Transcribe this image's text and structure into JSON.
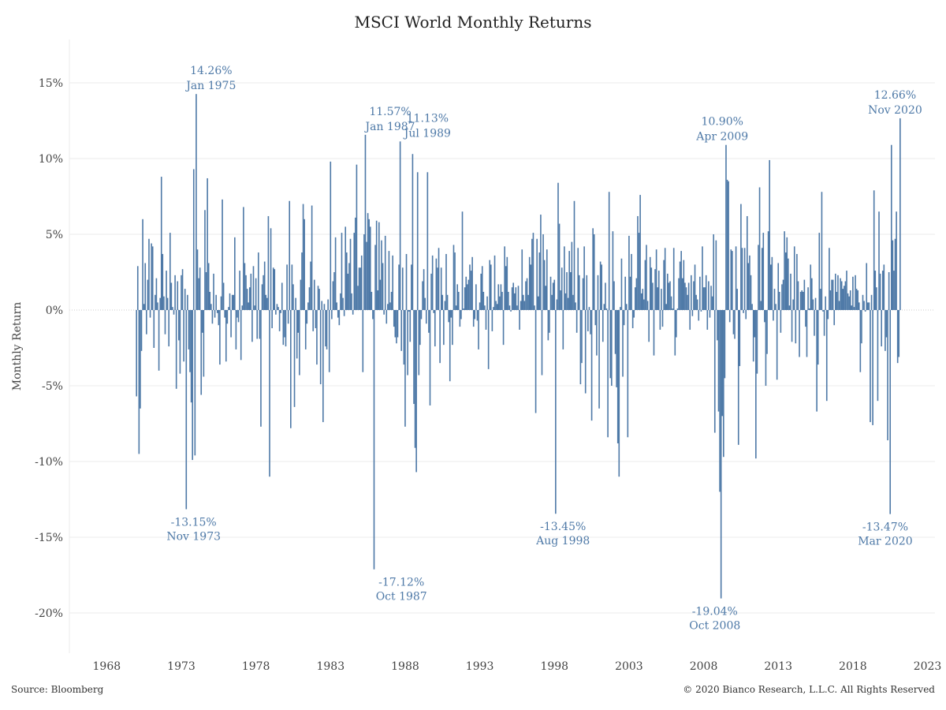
{
  "title": "MSCI World Monthly Returns",
  "source": "Source: Bloomberg",
  "copyright": "© 2020 Bianco Research, L.L.C. All Rights Reserved",
  "colors": {
    "bar": "#4e79a7",
    "annotation": "#4e79a7",
    "grid": "#ebebeb",
    "zero_line": "#cccccc"
  },
  "chart_data": {
    "type": "bar",
    "title": "MSCI World Monthly Returns",
    "xlabel": "",
    "ylabel": "Monthly Return",
    "x_ticks": [
      "1968",
      "1973",
      "1978",
      "1983",
      "1988",
      "1993",
      "1998",
      "2003",
      "2008",
      "2013",
      "2018",
      "2023"
    ],
    "y_ticks": [
      "15%",
      "10%",
      "5%",
      "0%",
      "-5%",
      "-10%",
      "-15%",
      "-20%"
    ],
    "ylim": [
      -22.5,
      17.5
    ],
    "xlim": [
      1965.5,
      2023.5
    ],
    "grid": "horizontal",
    "start": "1970-01",
    "series": [
      {
        "frequency": "monthly",
        "values": [
          -5.7,
          2.9,
          -9.5,
          -6.5,
          -2.7,
          6.0,
          0.4,
          3.1,
          -1.6,
          2.0,
          4.7,
          -0.5,
          4.4,
          4.2,
          -2.5,
          1.0,
          2.1,
          0.5,
          -4.0,
          0.8,
          8.8,
          3.7,
          0.9,
          -1.6,
          2.6,
          0.8,
          -2.4,
          5.1,
          1.8,
          0.2,
          -0.3,
          2.3,
          -5.2,
          1.9,
          -2.0,
          -4.2,
          2.3,
          2.7,
          -3.4,
          1.4,
          -13.15,
          1.0,
          -2.6,
          -4.1,
          -6.1,
          -9.9,
          9.3,
          -9.6,
          14.26,
          4.0,
          2.1,
          2.8,
          -5.6,
          -1.5,
          -4.4,
          6.6,
          2.5,
          8.7,
          3.1,
          1.2,
          0.4,
          -0.9,
          2.4,
          -0.5,
          1.0,
          -0.2,
          -1.0,
          -3.6,
          0.9,
          7.3,
          1.8,
          -0.5,
          -3.4,
          -0.9,
          0.2,
          1.1,
          -1.8,
          1.0,
          1.0,
          4.8,
          -2.6,
          -0.5,
          -0.8,
          2.6,
          -3.3,
          0.3,
          6.8,
          3.1,
          2.3,
          1.4,
          0.5,
          1.5,
          2.4,
          -2.1,
          2.9,
          0.3,
          2.1,
          -1.9,
          3.8,
          -1.9,
          -7.7,
          1.7,
          2.3,
          3.2,
          1.0,
          0.8,
          6.2,
          -11.0,
          5.4,
          -1.2,
          2.8,
          2.7,
          -0.3,
          0.4,
          0.2,
          -1.4,
          -0.2,
          1.8,
          -2.3,
          -1.8,
          -2.4,
          3.0,
          -0.9,
          7.2,
          -7.8,
          3.0,
          1.7,
          -6.4,
          0.8,
          -3.2,
          -1.5,
          -4.3,
          2.0,
          3.8,
          7.0,
          6.0,
          -2.6,
          -0.9,
          0.5,
          1.5,
          3.2,
          6.9,
          -1.4,
          2.0,
          -1.2,
          -3.6,
          1.6,
          1.4,
          -4.9,
          0.6,
          -7.4,
          0.4,
          -2.4,
          -2.6,
          0.7,
          -4.1,
          9.8,
          -0.6,
          1.9,
          2.5,
          4.8,
          0.5,
          -0.5,
          -1.0,
          1.1,
          5.1,
          0.8,
          -0.4,
          5.5,
          3.8,
          2.4,
          3.1,
          4.7,
          1.1,
          -0.3,
          5.1,
          6.1,
          9.6,
          1.6,
          2.8,
          2.8,
          3.6,
          -4.1,
          5.0,
          11.57,
          4.5,
          6.4,
          6.0,
          5.5,
          1.2,
          -0.6,
          -17.12,
          4.3,
          5.9,
          1.3,
          5.8,
          2.0,
          4.6,
          3.1,
          -0.3,
          4.9,
          -0.9,
          0.4,
          3.9,
          0.5,
          1.2,
          3.6,
          -1.1,
          -1.8,
          -2.2,
          -1.8,
          3.0,
          11.13,
          -2.7,
          2.8,
          -3.6,
          -7.7,
          3.7,
          -4.3,
          -0.1,
          -2.1,
          3.0,
          10.3,
          -6.2,
          -9.1,
          -10.7,
          9.1,
          -4.3,
          -2.3,
          -0.6,
          1.9,
          2.7,
          0.8,
          -0.9,
          9.1,
          -1.5,
          -6.3,
          2.4,
          3.6,
          -0.2,
          -2.4,
          3.4,
          2.8,
          4.1,
          -3.5,
          2.8,
          1.0,
          -2.3,
          0.6,
          3.7,
          1.0,
          -0.8,
          -4.7,
          -0.5,
          -2.3,
          4.3,
          3.8,
          0.3,
          1.7,
          1.2,
          -1.1,
          -0.6,
          6.5,
          0.1,
          1.5,
          2.2,
          1.7,
          2.0,
          3.0,
          2.6,
          3.5,
          -1.1,
          -0.6,
          1.7,
          -0.7,
          -2.6,
          0.5,
          2.4,
          2.9,
          1.2,
          0.3,
          -1.3,
          0.9,
          -3.9,
          3.3,
          3.0,
          -1.4,
          0.2,
          3.6,
          0.6,
          0.4,
          1.7,
          0.9,
          1.7,
          1.2,
          -2.3,
          4.2,
          2.9,
          3.5,
          1.2,
          0.3,
          -0.1,
          1.5,
          1.8,
          1.1,
          1.5,
          0.3,
          1.6,
          -1.3,
          0.6,
          4.0,
          1.0,
          0.6,
          1.9,
          2.1,
          1.0,
          3.5,
          3.0,
          4.7,
          5.1,
          0.3,
          -6.8,
          4.7,
          0.9,
          3.8,
          6.3,
          -4.3,
          5.0,
          3.3,
          1.6,
          4.0,
          -2.0,
          -1.5,
          2.2,
          1.0,
          1.8,
          2.0,
          -13.45,
          0.7,
          8.4,
          5.7,
          1.3,
          2.8,
          -2.6,
          4.2,
          1.1,
          2.5,
          0.8,
          3.9,
          2.5,
          4.5,
          1.0,
          7.2,
          0.5,
          -1.5,
          4.1,
          2.3,
          -4.9,
          -3.5,
          2.1,
          4.2,
          -5.5,
          2.3,
          -1.4,
          0.2,
          -1.6,
          -7.3,
          5.4,
          5.0,
          -1.0,
          -3.0,
          2.3,
          -6.5,
          3.2,
          3.0,
          -2.1,
          0.4,
          1.8,
          0.1,
          -8.4,
          7.8,
          -4.5,
          -5.0,
          5.2,
          1.9,
          -2.9,
          -5.1,
          -8.8,
          -11.0,
          0.2,
          3.4,
          -4.4,
          -1.0,
          2.2,
          0.4,
          -8.4,
          4.9,
          2.2,
          3.7,
          -1.2,
          -0.5,
          1.5,
          2.1,
          6.2,
          5.1,
          7.6,
          1.1,
          1.4,
          0.7,
          3.3,
          4.3,
          0.6,
          -2.1,
          3.5,
          2.8,
          1.8,
          -3.0,
          2.7,
          4.0,
          1.5,
          2.6,
          -1.3,
          1.4,
          -1.1,
          3.3,
          4.1,
          0.4,
          2.4,
          1.8,
          1.9,
          0.9,
          0.1,
          4.1,
          -3.0,
          -1.8,
          0.1,
          2.1,
          3.2,
          3.9,
          2.1,
          3.3,
          1.8,
          1.5,
          1.0,
          1.8,
          -1.3,
          2.3,
          -0.4,
          1.9,
          3.0,
          1.0,
          0.7,
          -0.7,
          2.2,
          -0.1,
          4.2,
          1.5,
          1.5,
          2.3,
          -1.3,
          1.9,
          -0.5,
          1.6,
          0.9,
          5.0,
          -8.1,
          4.6,
          -2.0,
          -6.7,
          -12.0,
          -19.04,
          -7.0,
          -9.7,
          -4.5,
          10.9,
          8.6,
          8.5,
          -0.8,
          4.0,
          3.9,
          -1.6,
          -1.9,
          4.2,
          1.4,
          -8.9,
          -3.7,
          7.0,
          4.1,
          -0.2,
          4.1,
          -0.6,
          6.2,
          3.1,
          3.6,
          2.3,
          0.4,
          -3.4,
          -1.8,
          -9.8,
          -4.2,
          4.3,
          8.1,
          0.6,
          4.1,
          5.1,
          -0.8,
          -5.0,
          -2.9,
          5.2,
          9.9,
          3.0,
          3.5,
          -0.7,
          1.4,
          0.4,
          -4.6,
          3.1,
          1.2,
          -1.5,
          1.7,
          2.0,
          5.2,
          3.8,
          4.8,
          3.4,
          0.3,
          2.4,
          -2.1,
          0.7,
          4.2,
          -2.2,
          3.7,
          1.9,
          -3.1,
          1.2,
          1.3,
          1.2,
          2.0,
          -1.1,
          -3.1,
          1.5,
          0.1,
          3.0,
          2.1,
          0.7,
          -1.7,
          0.8,
          -6.7,
          -3.6,
          5.1,
          1.4,
          7.8,
          -0.1,
          -1.7,
          0.9,
          -6.0,
          -0.6,
          4.1,
          1.3,
          2.0,
          2.0,
          -1.0,
          2.4,
          1.2,
          2.3,
          0.6,
          2.1,
          1.9,
          1.4,
          1.6,
          1.9,
          2.6,
          1.1,
          0.9,
          1.3,
          0.3,
          2.2,
          0.2,
          2.3,
          1.4,
          1.3,
          0.5,
          -4.1,
          -2.2,
          1.0,
          0.6,
          -0.1,
          3.1,
          0.5,
          0.5,
          -7.4,
          1.0,
          -7.6,
          7.9,
          2.6,
          1.5,
          -6.0,
          6.5,
          2.4,
          -2.4,
          2.6,
          3.0,
          -2.7,
          -1.8,
          -8.6,
          2.5,
          -13.47,
          10.9,
          4.6,
          2.6,
          4.7,
          6.5,
          -3.5,
          -3.1,
          12.66
        ]
      }
    ],
    "annotations": [
      {
        "label": "14.26%",
        "date": "Jan 1975",
        "x": 1975.0,
        "y": 14.26,
        "position": "above"
      },
      {
        "label": "-13.15%",
        "date": "Nov 1973",
        "x": 1973.83,
        "y": -13.15,
        "position": "below"
      },
      {
        "label": "11.57%",
        "date": "Jan 1987",
        "x": 1987.0,
        "y": 11.57,
        "position": "above"
      },
      {
        "label": "-17.12%",
        "date": "Oct 1987",
        "x": 1987.75,
        "y": -17.12,
        "position": "below"
      },
      {
        "label": "11.13%",
        "date": "Jul 1989",
        "x": 1989.5,
        "y": 11.13,
        "position": "above"
      },
      {
        "label": "-13.45%",
        "date": "Aug 1998",
        "x": 1998.58,
        "y": -13.45,
        "position": "below"
      },
      {
        "label": "10.90%",
        "date": "Apr 2009",
        "x": 2009.25,
        "y": 10.9,
        "position": "above"
      },
      {
        "label": "-19.04%",
        "date": "Oct 2008",
        "x": 2008.75,
        "y": -19.04,
        "position": "below"
      },
      {
        "label": "12.66%",
        "date": "Nov 2020",
        "x": 2020.83,
        "y": 12.66,
        "position": "above"
      },
      {
        "label": "-13.47%",
        "date": "Mar 2020",
        "x": 2020.17,
        "y": -13.47,
        "position": "below"
      }
    ]
  }
}
